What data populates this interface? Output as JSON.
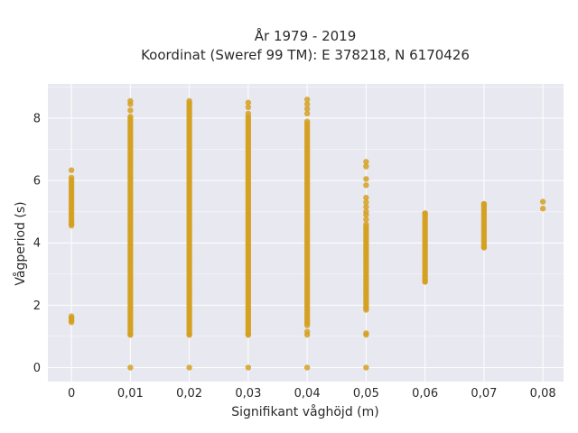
{
  "chart_data": {
    "type": "scatter",
    "title": "År 1979 - 2019",
    "subtitle": "Koordinat (Sweref 99 TM): E 378218, N 6170426",
    "xlabel": "Signifikant våghöjd (m)",
    "ylabel": "Vågperiod (s)",
    "x_ticks": [
      "0",
      "0,01",
      "0,02",
      "0,03",
      "0,04",
      "0,05",
      "0,06",
      "0,07",
      "0,08"
    ],
    "y_ticks": [
      "0",
      "2",
      "4",
      "6",
      "8"
    ],
    "xlim": [
      -0.004,
      0.0835
    ],
    "ylim": [
      -0.45,
      9.1
    ],
    "grid": true,
    "point_color": "#d4a020",
    "background_color": "#e8e8f0",
    "columns": [
      {
        "x": 0.0,
        "y_ranges": [
          [
            4.55,
            6.1
          ],
          [
            1.45,
            1.65
          ]
        ],
        "y_points": [
          6.33,
          4.6,
          1.6,
          1.5
        ]
      },
      {
        "x": 0.01,
        "y_ranges": [
          [
            1.05,
            8.0
          ]
        ],
        "y_points": [
          8.55,
          8.45,
          8.25,
          8.05,
          1.05,
          0.0
        ]
      },
      {
        "x": 0.02,
        "y_ranges": [
          [
            1.05,
            8.5
          ]
        ],
        "y_points": [
          8.55,
          1.05,
          0.0
        ]
      },
      {
        "x": 0.03,
        "y_ranges": [
          [
            1.05,
            8.0
          ]
        ],
        "y_points": [
          8.5,
          8.35,
          8.15,
          8.05,
          1.05,
          0.0
        ]
      },
      {
        "x": 0.04,
        "y_ranges": [
          [
            1.35,
            7.9
          ]
        ],
        "y_points": [
          8.6,
          8.45,
          8.3,
          8.15,
          1.15,
          1.05,
          0.0
        ]
      },
      {
        "x": 0.05,
        "y_ranges": [
          [
            1.9,
            4.6
          ]
        ],
        "y_points": [
          6.6,
          6.45,
          6.05,
          5.85,
          5.45,
          5.3,
          5.15,
          5.0,
          4.9,
          4.75,
          1.85,
          1.1,
          1.05,
          0.0
        ]
      },
      {
        "x": 0.06,
        "y_ranges": [
          [
            2.75,
            4.95
          ]
        ],
        "y_points": [
          4.95,
          2.75
        ]
      },
      {
        "x": 0.07,
        "y_ranges": [
          [
            3.85,
            5.25
          ]
        ],
        "y_points": [
          5.25,
          3.85
        ]
      },
      {
        "x": 0.08,
        "y_ranges": [],
        "y_points": [
          5.32,
          5.1
        ]
      }
    ]
  }
}
